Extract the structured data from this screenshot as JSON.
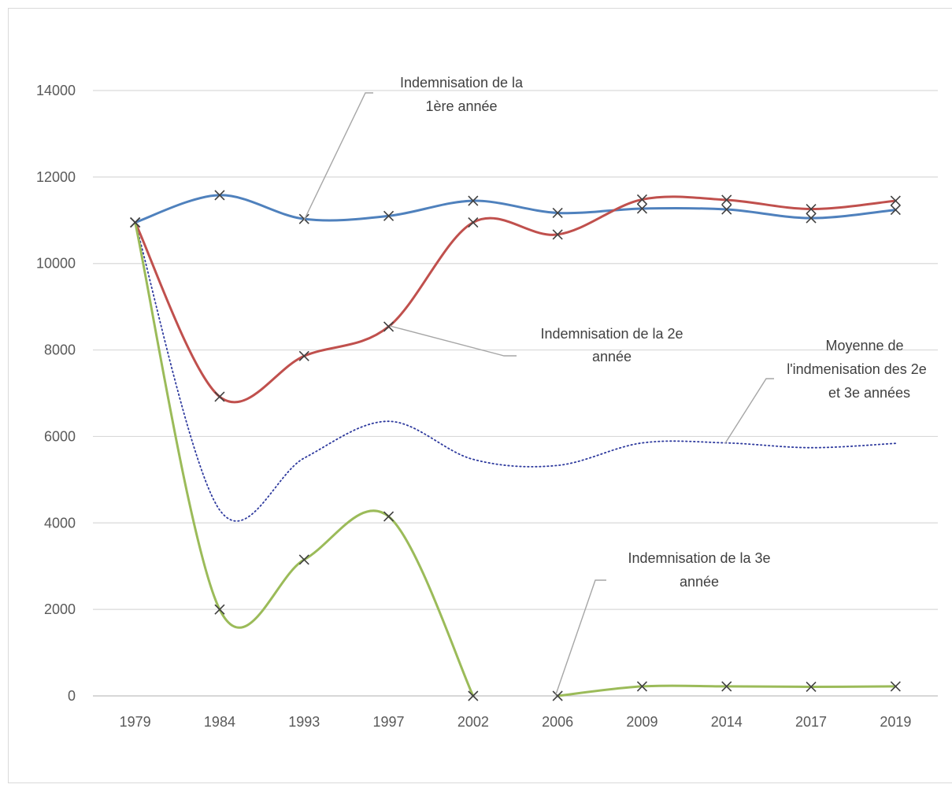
{
  "chart_data": {
    "type": "line",
    "title": "",
    "xlabel": "",
    "ylabel": "",
    "categories": [
      "1979",
      "1984",
      "1993",
      "1997",
      "2002",
      "2006",
      "2009",
      "2014",
      "2017",
      "2019"
    ],
    "ylim": [
      0,
      14000
    ],
    "yticks": [
      0,
      2000,
      4000,
      6000,
      8000,
      10000,
      12000,
      14000
    ],
    "grid": true,
    "legend": "none",
    "series": [
      {
        "key": "first_year",
        "color": "#4f81bd",
        "dashed": false,
        "markers": true,
        "values": [
          10950,
          11580,
          11030,
          11100,
          11450,
          11170,
          11270,
          11250,
          11050,
          11240
        ]
      },
      {
        "key": "second_year",
        "color": "#c0504d",
        "dashed": false,
        "markers": true,
        "values": [
          10950,
          6920,
          7860,
          8540,
          10950,
          10670,
          11480,
          11470,
          11260,
          11450
        ]
      },
      {
        "key": "average",
        "color": "#2e3a9e",
        "dashed": true,
        "markers": false,
        "values": [
          10950,
          4300,
          5500,
          6350,
          5470,
          5330,
          5850,
          5850,
          5740,
          5840
        ]
      },
      {
        "key": "third_year",
        "color": "#9bbb59",
        "dashed": false,
        "markers": true,
        "values": [
          10950,
          2000,
          3150,
          4150,
          0,
          null,
          220,
          220,
          210,
          220
        ],
        "markers_at": [
          0,
          1,
          2,
          3,
          4,
          5,
          6,
          7,
          8,
          9
        ],
        "marker_values": [
          10950,
          2000,
          3150,
          4150,
          0,
          0,
          220,
          220,
          210,
          220
        ],
        "segments": [
          [
            0,
            4
          ],
          [
            5,
            9
          ]
        ],
        "segment_start_values": {
          "5": 0
        }
      }
    ],
    "annotations": [
      {
        "key": "first_year",
        "lines": [
          "Indemnisation de la",
          "1ère année"
        ]
      },
      {
        "key": "second_year",
        "lines": [
          "Indemnisation de la 2e",
          "année"
        ]
      },
      {
        "key": "average",
        "lines": [
          "Moyenne de",
          "l'indmenisation des 2e",
          "et 3e années"
        ]
      },
      {
        "key": "third_year",
        "lines": [
          "Indemnisation de la 3e",
          "année"
        ]
      }
    ]
  }
}
